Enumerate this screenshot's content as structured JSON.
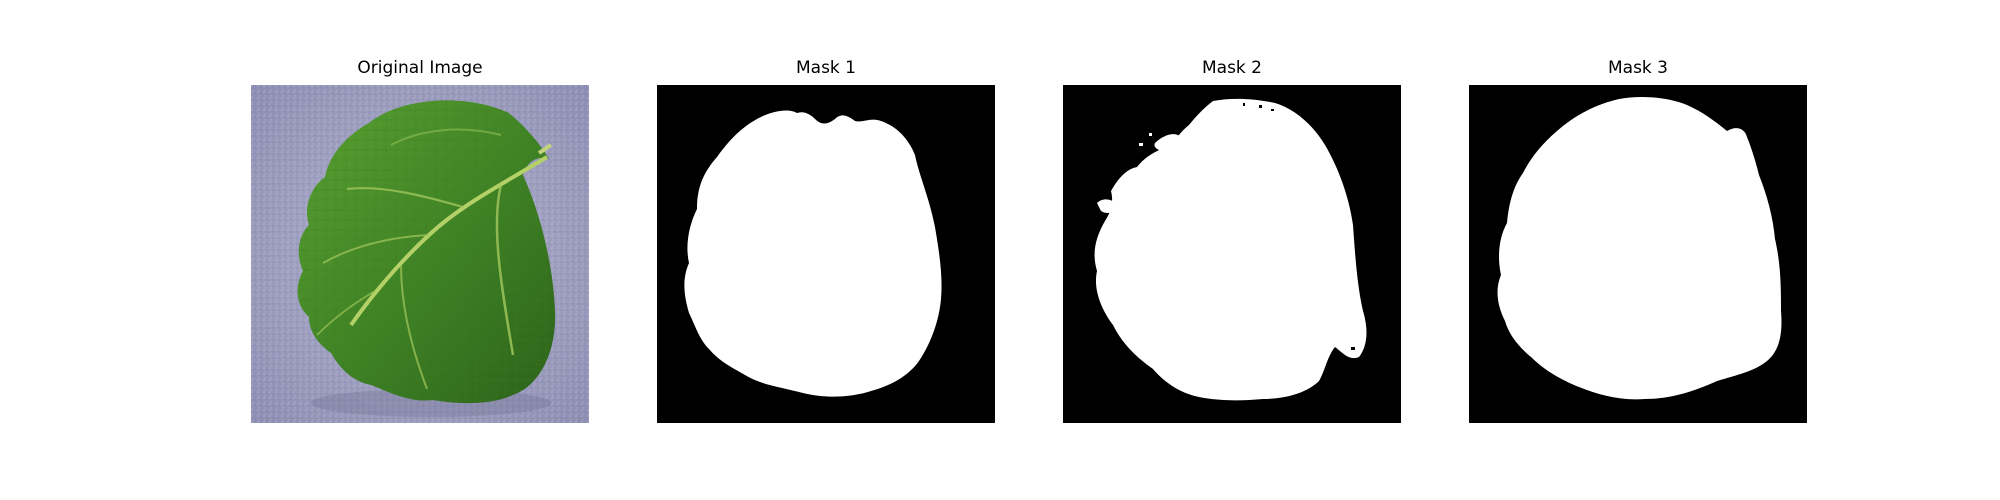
{
  "figure": {
    "panels": [
      {
        "title": "Original Image"
      },
      {
        "title": "Mask 1"
      },
      {
        "title": "Mask 2"
      },
      {
        "title": "Mask 3"
      }
    ]
  },
  "colors": {
    "background": "#ffffff",
    "mask_background": "#000000",
    "mask_foreground": "#ffffff",
    "leaf_dark": "#2f6b1d",
    "leaf_mid": "#4b8f2c",
    "leaf_light": "#79b54a",
    "surface": "#9e9fc0"
  }
}
